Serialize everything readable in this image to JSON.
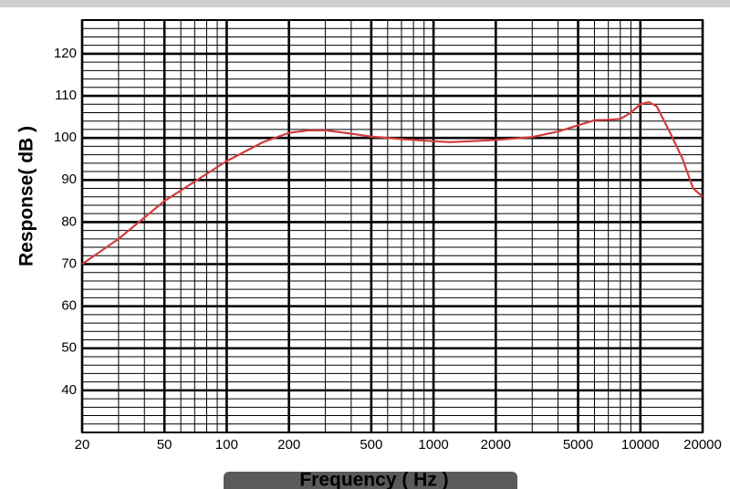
{
  "chart_data": {
    "type": "line",
    "x_label": "Frequency ( Hz )",
    "y_label": "Response( dB )",
    "xscale": "log",
    "xlim": [
      20,
      20000
    ],
    "ylim": [
      30,
      128
    ],
    "xticks": [
      20,
      50,
      100,
      200,
      500,
      1000,
      2000,
      5000,
      10000,
      20000
    ],
    "xminorticks": [
      30,
      40,
      60,
      70,
      80,
      90,
      300,
      400,
      600,
      700,
      800,
      900,
      3000,
      4000,
      6000,
      7000,
      8000,
      9000
    ],
    "yticks": [
      40,
      50,
      60,
      70,
      80,
      90,
      100,
      110,
      120
    ],
    "yminorticks": [
      32,
      34,
      36,
      38,
      42,
      44,
      46,
      48,
      52,
      54,
      56,
      58,
      62,
      64,
      66,
      68,
      72,
      74,
      76,
      78,
      82,
      84,
      86,
      88,
      92,
      94,
      96,
      98,
      102,
      104,
      106,
      108,
      112,
      114,
      116,
      118,
      122,
      124,
      126
    ],
    "grid": true,
    "series": [
      {
        "color": "#d23c3c",
        "x": [
          20,
          30,
          50,
          100,
          150,
          200,
          250,
          300,
          400,
          500,
          700,
          1000,
          1200,
          1500,
          2000,
          3000,
          4000,
          5000,
          6000,
          7000,
          8000,
          9000,
          10000,
          11000,
          12000,
          14000,
          16000,
          18000,
          20000
        ],
        "values": [
          70,
          76,
          85,
          94.5,
          99,
          101.2,
          101.8,
          101.8,
          101,
          100.3,
          99.7,
          99.2,
          99,
          99.2,
          99.5,
          100.2,
          101.5,
          103,
          104.2,
          104.3,
          104.5,
          106,
          108,
          108.5,
          107.5,
          101,
          95,
          88,
          86
        ]
      }
    ]
  }
}
